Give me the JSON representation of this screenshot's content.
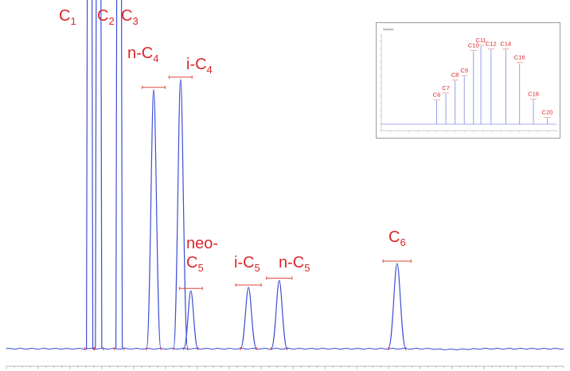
{
  "chart_data": [
    {
      "type": "line",
      "series": [
        {
          "label_lines": [
            "C",
            "1"
          ],
          "x": 0.55,
          "y": 100
        },
        {
          "label_lines": [
            "C",
            "2"
          ],
          "x": 0.62,
          "y": 100
        },
        {
          "label_lines": [
            "C",
            "3"
          ],
          "x": 0.78,
          "y": 100
        },
        {
          "label_lines": [
            "n-C",
            "4"
          ],
          "x": 1.05,
          "y": 76
        },
        {
          "label_lines": [
            "i-C",
            "4"
          ],
          "x": 1.26,
          "y": 79
        },
        {
          "label_lines": [
            "neo-",
            "C",
            "5"
          ],
          "x": 1.34,
          "y": 17
        },
        {
          "label_lines": [
            "i-C",
            "5"
          ],
          "x": 1.79,
          "y": 18
        },
        {
          "label_lines": [
            "n-C",
            "5"
          ],
          "x": 2.03,
          "y": 20
        },
        {
          "label_lines": [
            "C",
            "6"
          ],
          "x": 2.95,
          "y": 25
        }
      ],
      "baseline": 0.6,
      "xlim": [
        -0.1,
        4.25
      ],
      "ylim": [
        0,
        100
      ],
      "colors": {
        "trace": "#3d4fd6",
        "label": "#d9262b",
        "marker": "#e0453a"
      }
    },
    {
      "type": "line",
      "title": "Sample",
      "series": [
        {
          "label": "C6",
          "x": 6.0,
          "y": 27
        },
        {
          "label": "C7",
          "x": 7.0,
          "y": 35
        },
        {
          "label": "C8",
          "x": 8.0,
          "y": 50
        },
        {
          "label": "C9",
          "x": 9.0,
          "y": 55
        },
        {
          "label": "C10",
          "x": 10.0,
          "y": 84
        },
        {
          "label": "C11",
          "x": 10.8,
          "y": 90
        },
        {
          "label": "C12",
          "x": 11.9,
          "y": 86
        },
        {
          "label": "C14",
          "x": 13.5,
          "y": 86
        },
        {
          "label": "C16",
          "x": 15.0,
          "y": 70
        },
        {
          "label": "C18",
          "x": 16.5,
          "y": 28
        },
        {
          "label": "C20",
          "x": 18.0,
          "y": 7
        }
      ],
      "xlim": [
        0,
        19
      ],
      "ylim": [
        0,
        100
      ],
      "colors": {
        "trace": "#8b93e8",
        "label": "#d9262b"
      }
    }
  ]
}
